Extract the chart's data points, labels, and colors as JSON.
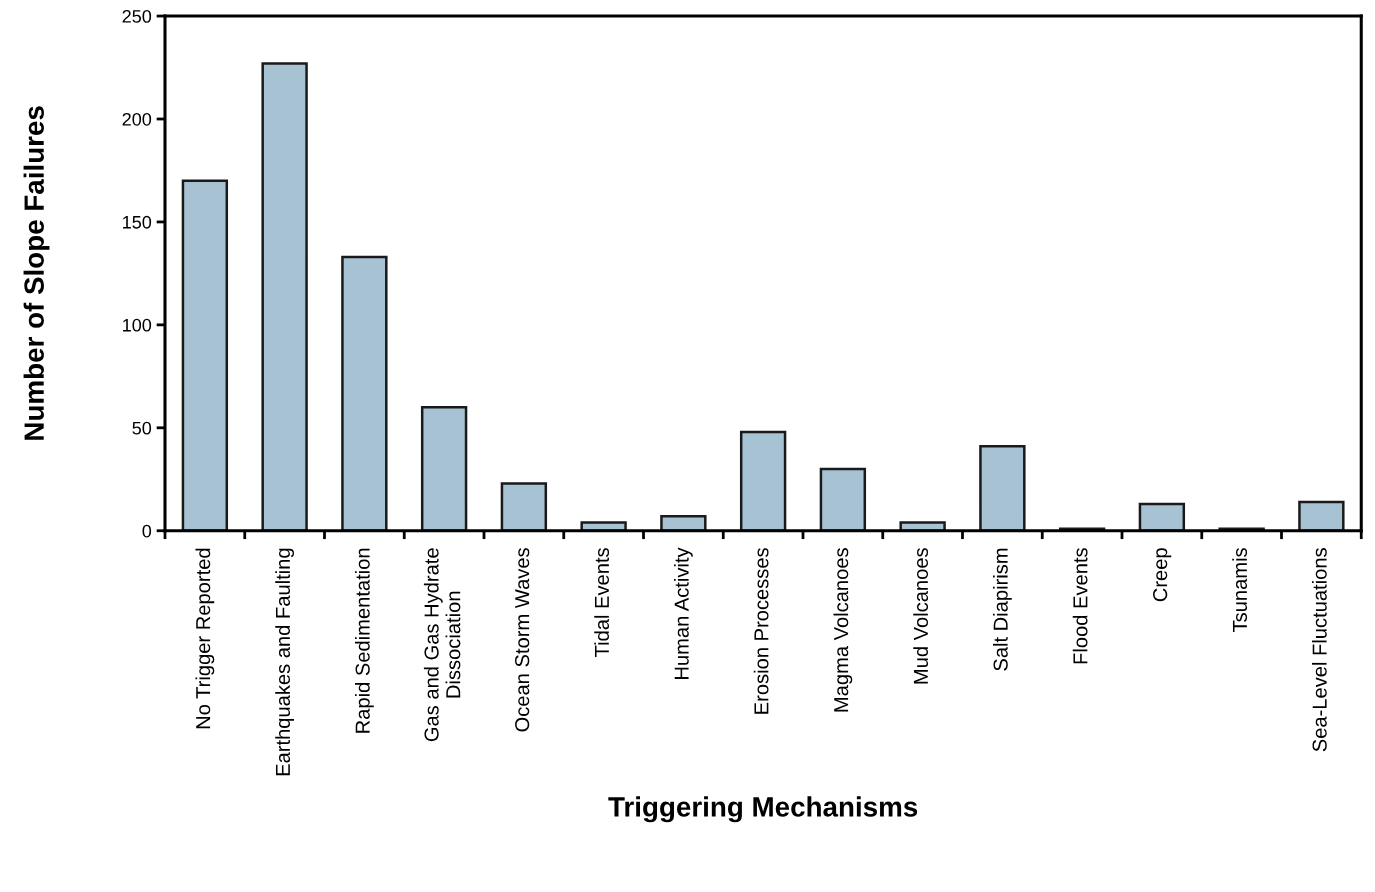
{
  "chart_data": {
    "type": "bar",
    "xlabel": "Triggering Mechanisms",
    "ylabel": "Number of Slope Failures",
    "categories": [
      "No Trigger Reported",
      "Earthquakes and Faulting",
      "Rapid Sedimentation",
      "Gas and Gas Hydrate\nDissociation",
      "Ocean Storm Waves",
      "Tidal Events",
      "Human Activity",
      "Erosion Processes",
      "Magma Volcanoes",
      "Mud Volcanoes",
      "Salt Diapirism",
      "Flood Events",
      "Creep",
      "Tsunamis",
      "Sea-Level Fluctuations"
    ],
    "values": [
      170,
      227,
      133,
      60,
      23,
      4,
      7,
      48,
      30,
      4,
      41,
      1,
      13,
      1,
      14
    ],
    "color": "#a7c3d3",
    "ylim": [
      0,
      250
    ],
    "yticks": [
      0,
      50,
      100,
      150,
      200,
      250
    ],
    "grid": false,
    "legend": false
  }
}
